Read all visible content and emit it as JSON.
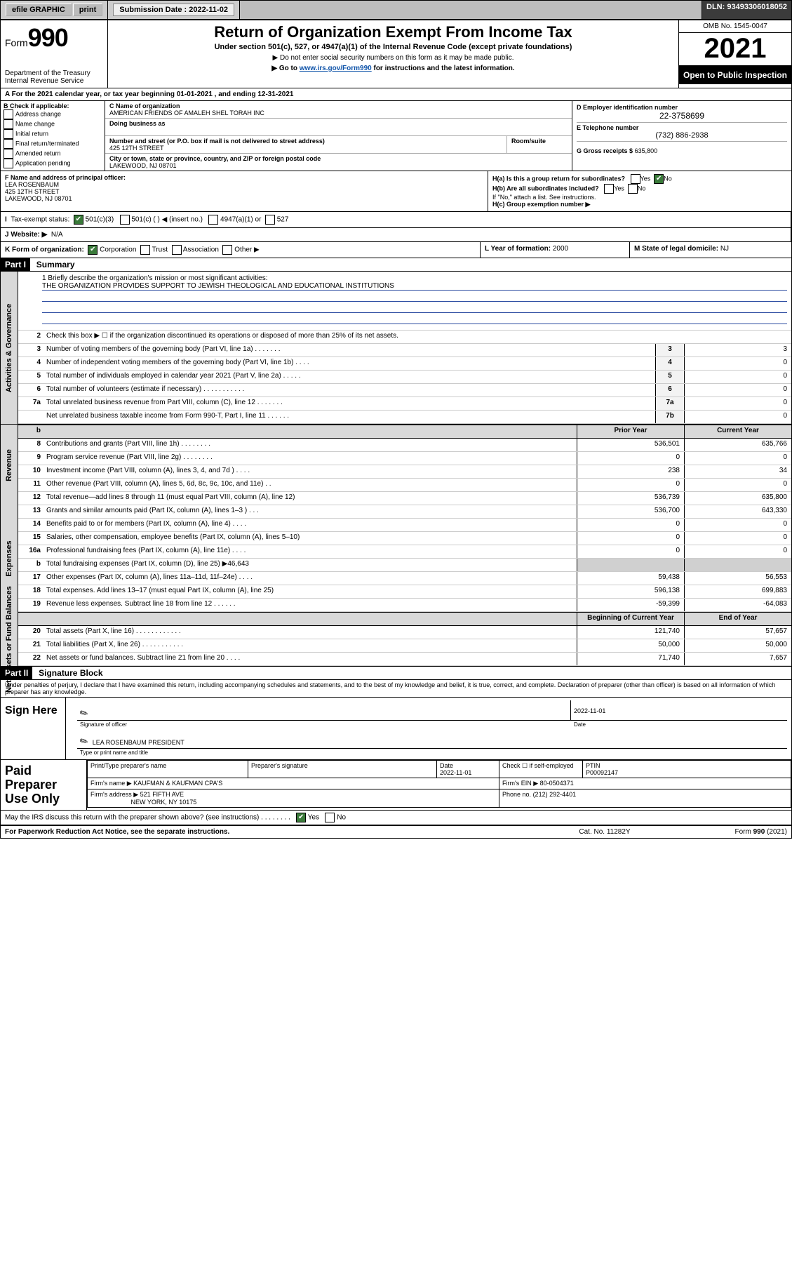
{
  "topbar": {
    "efile": "efile GRAPHIC",
    "print": "print",
    "sub_label": "Submission Date :",
    "sub_date": "2022-11-02",
    "dln_label": "DLN:",
    "dln": "93493306018052"
  },
  "header": {
    "form_prefix": "Form",
    "form_num": "990",
    "dept": "Department of the Treasury",
    "irs": "Internal Revenue Service",
    "title": "Return of Organization Exempt From Income Tax",
    "sub1": "Under section 501(c), 527, or 4947(a)(1) of the Internal Revenue Code (except private foundations)",
    "sub2": "▶ Do not enter social security numbers on this form as it may be made public.",
    "sub3_pre": "▶ Go to ",
    "sub3_link": "www.irs.gov/Form990",
    "sub3_post": " for instructions and the latest information.",
    "omb": "OMB No. 1545-0047",
    "year": "2021",
    "open_public": "Open to Public Inspection"
  },
  "period": {
    "label_a": "A For the 2021 calendar year, or tax year beginning ",
    "begin": "01-01-2021",
    "mid": " , and ending ",
    "end": "12-31-2021"
  },
  "boxB": {
    "title": "B Check if applicable:",
    "items": [
      "Address change",
      "Name change",
      "Initial return",
      "Final return/terminated",
      "Amended return",
      "Application pending"
    ]
  },
  "boxC": {
    "name_label": "C Name of organization",
    "name": "AMERICAN FRIENDS OF AMALEH SHEL TORAH INC",
    "dba_label": "Doing business as",
    "ns_label": "Number and street (or P.O. box if mail is not delivered to street address)",
    "ns": "425 12TH STREET",
    "room_label": "Room/suite",
    "city_label": "City or town, state or province, country, and ZIP or foreign postal code",
    "city": "LAKEWOOD, NJ  08701"
  },
  "boxD": {
    "ein_label": "D Employer identification number",
    "ein": "22-3758699",
    "tel_label": "E Telephone number",
    "tel": "(732) 886-2938",
    "gross_label": "G Gross receipts $",
    "gross": "635,800"
  },
  "boxF": {
    "label": "F Name and address of principal officer:",
    "name": "LEA ROSENBAUM",
    "street": "425 12TH STREET",
    "city": "LAKEWOOD, NJ  08701"
  },
  "boxH": {
    "ha": "H(a)  Is this a group return for subordinates?",
    "hb": "H(b)  Are all subordinates included?",
    "hb_note": "If \"No,\" attach a list. See instructions.",
    "hc": "H(c)  Group exemption number ▶",
    "yes": "Yes",
    "no": "No"
  },
  "taxExempt": {
    "label": "Tax-exempt status:",
    "c3": "501(c)(3)",
    "c": "501(c) (   ) ◀ (insert no.)",
    "a1": "4947(a)(1) or",
    "s527": "527"
  },
  "website": {
    "label": "J Website: ▶",
    "val": "N/A"
  },
  "formOrg": {
    "label": "K Form of organization:",
    "corp": "Corporation",
    "trust": "Trust",
    "assoc": "Association",
    "other": "Other ▶"
  },
  "yearFormed": {
    "label": "L Year of formation:",
    "val": "2000"
  },
  "domicile": {
    "label": "M State of legal domicile:",
    "val": "NJ"
  },
  "part1": {
    "tag": "Part I",
    "title": "Summary"
  },
  "mission": {
    "q": "1  Briefly describe the organization's mission or most significant activities:",
    "text": "THE ORGANIZATION PROVIDES SUPPORT TO JEWISH THEOLOGICAL AND EDUCATIONAL INSTITUTIONS"
  },
  "lines_gov": [
    {
      "num": "2",
      "desc": "Check this box ▶ ☐  if the organization discontinued its operations or disposed of more than 25% of its net assets."
    },
    {
      "num": "3",
      "desc": "Number of voting members of the governing body (Part VI, line 1a)   .   .   .   .   .   .   .",
      "box": "3",
      "cur": "3"
    },
    {
      "num": "4",
      "desc": "Number of independent voting members of the governing body (Part VI, line 1b)   .   .   .   .",
      "box": "4",
      "cur": "0"
    },
    {
      "num": "5",
      "desc": "Total number of individuals employed in calendar year 2021 (Part V, line 2a)   .   .   .   .   .",
      "box": "5",
      "cur": "0"
    },
    {
      "num": "6",
      "desc": "Total number of volunteers (estimate if necessary)   .   .   .   .   .   .   .   .   .   .   .",
      "box": "6",
      "cur": "0"
    },
    {
      "num": "7a",
      "desc": "Total unrelated business revenue from Part VIII, column (C), line 12   .   .   .   .   .   .   .",
      "box": "7a",
      "cur": "0"
    },
    {
      "num": "",
      "desc": "Net unrelated business taxable income from Form 990-T, Part I, line 11   .   .   .   .   .   .",
      "box": "7b",
      "cur": "0"
    }
  ],
  "col_hdr": {
    "prior": "Prior Year",
    "current": "Current Year",
    "beg": "Beginning of Current Year",
    "end": "End of Year"
  },
  "lines_rev": [
    {
      "num": "8",
      "desc": "Contributions and grants (Part VIII, line 1h)   .   .   .   .   .   .   .   .",
      "prior": "536,501",
      "cur": "635,766"
    },
    {
      "num": "9",
      "desc": "Program service revenue (Part VIII, line 2g)   .   .   .   .   .   .   .   .",
      "prior": "0",
      "cur": "0"
    },
    {
      "num": "10",
      "desc": "Investment income (Part VIII, column (A), lines 3, 4, and 7d )   .   .   .   .",
      "prior": "238",
      "cur": "34"
    },
    {
      "num": "11",
      "desc": "Other revenue (Part VIII, column (A), lines 5, 6d, 8c, 9c, 10c, and 11e)   .   .",
      "prior": "0",
      "cur": "0"
    },
    {
      "num": "12",
      "desc": "Total revenue—add lines 8 through 11 (must equal Part VIII, column (A), line 12)",
      "prior": "536,739",
      "cur": "635,800"
    }
  ],
  "lines_exp": [
    {
      "num": "13",
      "desc": "Grants and similar amounts paid (Part IX, column (A), lines 1–3 )   .   .   .",
      "prior": "536,700",
      "cur": "643,330"
    },
    {
      "num": "14",
      "desc": "Benefits paid to or for members (Part IX, column (A), line 4)   .   .   .   .",
      "prior": "0",
      "cur": "0"
    },
    {
      "num": "15",
      "desc": "Salaries, other compensation, employee benefits (Part IX, column (A), lines 5–10)",
      "prior": "0",
      "cur": "0"
    },
    {
      "num": "16a",
      "desc": "Professional fundraising fees (Part IX, column (A), line 11e)   .   .   .   .",
      "prior": "0",
      "cur": "0"
    },
    {
      "num": "b",
      "desc": "Total fundraising expenses (Part IX, column (D), line 25) ▶46,643",
      "shade": true
    },
    {
      "num": "17",
      "desc": "Other expenses (Part IX, column (A), lines 11a–11d, 11f–24e)   .   .   .   .",
      "prior": "59,438",
      "cur": "56,553"
    },
    {
      "num": "18",
      "desc": "Total expenses. Add lines 13–17 (must equal Part IX, column (A), line 25)",
      "prior": "596,138",
      "cur": "699,883"
    },
    {
      "num": "19",
      "desc": "Revenue less expenses. Subtract line 18 from line 12   .   .   .   .   .   .",
      "prior": "-59,399",
      "cur": "-64,083"
    }
  ],
  "lines_na": [
    {
      "num": "20",
      "desc": "Total assets (Part X, line 16)   .   .   .   .   .   .   .   .   .   .   .   .",
      "prior": "121,740",
      "cur": "57,657"
    },
    {
      "num": "21",
      "desc": "Total liabilities (Part X, line 26)   .   .   .   .   .   .   .   .   .   .   .",
      "prior": "50,000",
      "cur": "50,000"
    },
    {
      "num": "22",
      "desc": "Net assets or fund balances. Subtract line 21 from line 20   .   .   .   .",
      "prior": "71,740",
      "cur": "7,657"
    }
  ],
  "part2": {
    "tag": "Part II",
    "title": "Signature Block"
  },
  "penalties": "Under penalties of perjury, I declare that I have examined this return, including accompanying schedules and statements, and to the best of my knowledge and belief, it is true, correct, and complete. Declaration of preparer (other than officer) is based on all information of which preparer has any knowledge.",
  "sign": {
    "here": "Sign Here",
    "sig_officer": "Signature of officer",
    "date_label": "Date",
    "date": "2022-11-01",
    "name_title": "LEA ROSENBAUM  PRESIDENT",
    "name_title_label": "Type or print name and title"
  },
  "prep": {
    "here": "Paid Preparer Use Only",
    "h_name": "Print/Type preparer's name",
    "h_sig": "Preparer's signature",
    "h_date": "Date",
    "date": "2022-11-01",
    "h_check": "Check ☐ if self-employed",
    "h_ptin": "PTIN",
    "ptin": "P00092147",
    "firm_name_label": "Firm's name    ▶",
    "firm_name": "KAUFMAN & KAUFMAN CPA'S",
    "firm_ein_label": "Firm's EIN ▶",
    "firm_ein": "80-0504371",
    "firm_addr_label": "Firm's address ▶",
    "firm_addr1": "521 FIFTH AVE",
    "firm_addr2": "NEW YORK, NY  10175",
    "phone_label": "Phone no.",
    "phone": "(212) 292-4401"
  },
  "discuss": {
    "q": "May the IRS discuss this return with the preparer shown above? (see instructions)   .   .   .   .   .   .   .   .",
    "yes": "Yes",
    "no": "No"
  },
  "footer": {
    "pra": "For Paperwork Reduction Act Notice, see the separate instructions.",
    "cat": "Cat. No. 11282Y",
    "form": "Form 990 (2021)"
  },
  "section_labels": {
    "gov": "Activities & Governance",
    "rev": "Revenue",
    "exp": "Expenses",
    "na": "Net Assets or Fund Balances"
  }
}
